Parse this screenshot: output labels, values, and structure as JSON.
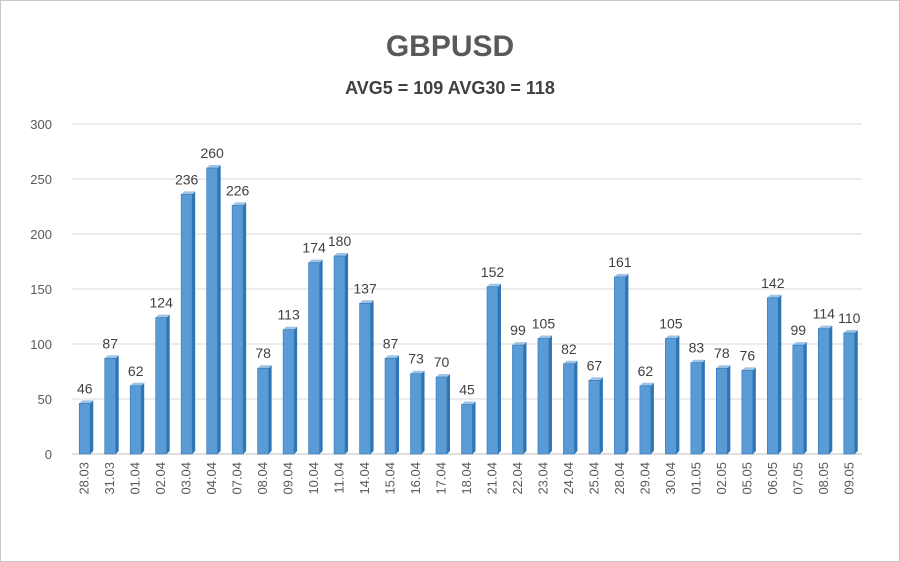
{
  "chart_data": {
    "type": "bar",
    "title": "GBPUSD",
    "subtitle": "AVG5 = 109 AVG30 = 118",
    "categories": [
      "28.03",
      "31.03",
      "01.04",
      "02.04",
      "03.04",
      "04.04",
      "07.04",
      "08.04",
      "09.04",
      "10.04",
      "11.04",
      "14.04",
      "15.04",
      "16.04",
      "17.04",
      "18.04",
      "21.04",
      "22.04",
      "23.04",
      "24.04",
      "25.04",
      "28.04",
      "29.04",
      "30.04",
      "01.05",
      "02.05",
      "05.05",
      "06.05",
      "07.05",
      "08.05",
      "09.05"
    ],
    "values": [
      46,
      87,
      62,
      124,
      236,
      260,
      226,
      78,
      113,
      174,
      180,
      137,
      87,
      73,
      70,
      45,
      152,
      99,
      105,
      82,
      67,
      161,
      62,
      105,
      83,
      78,
      76,
      142,
      99,
      114,
      110
    ],
    "ylim": [
      0,
      300
    ],
    "yticks": [
      "0",
      "50",
      "100",
      "150",
      "200",
      "250",
      "300"
    ],
    "xlabel": "",
    "ylabel": "",
    "grid": true,
    "legend": "none",
    "colors": {
      "bar": "#5b9bd5",
      "bar_dark": "#2e75b6",
      "grid": "#d9d9d9"
    }
  }
}
